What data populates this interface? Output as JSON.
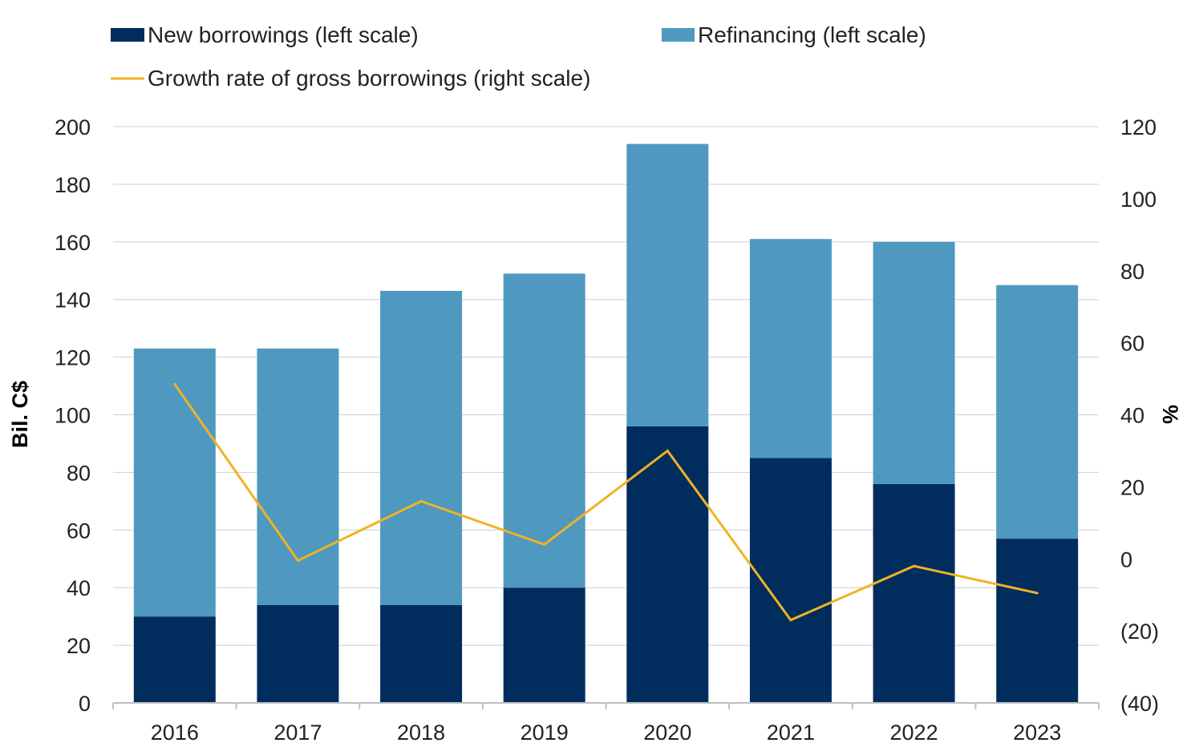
{
  "chart_data": {
    "type": "bar",
    "stacked": true,
    "categories": [
      "2016",
      "2017",
      "2018",
      "2019",
      "2020",
      "2021",
      "2022",
      "2023"
    ],
    "series": [
      {
        "name": "New borrowings (left scale)",
        "type": "bar",
        "axis": "left",
        "color": "#002d5e",
        "values": [
          30,
          34,
          34,
          40,
          96,
          85,
          76,
          57
        ]
      },
      {
        "name": "Refinancing (left scale)",
        "type": "bar",
        "axis": "left",
        "color": "#4f99c0",
        "values": [
          93,
          89,
          109,
          109,
          98,
          76,
          84,
          88
        ]
      },
      {
        "name": "Growth rate of gross borrowings (right scale)",
        "type": "line",
        "axis": "right",
        "color": "#f0b323",
        "values": [
          48.5,
          -0.5,
          16,
          4,
          30,
          -17,
          -2,
          -9.5
        ]
      }
    ],
    "y_left": {
      "label": "Bil. C$",
      "range": [
        0,
        200
      ],
      "ticks": [
        0,
        20,
        40,
        60,
        80,
        100,
        120,
        140,
        160,
        180,
        200
      ],
      "tick_labels": [
        "0",
        "20",
        "40",
        "60",
        "80",
        "100",
        "120",
        "140",
        "160",
        "180",
        "200"
      ]
    },
    "y_right": {
      "label": "%",
      "range": [
        -40,
        120
      ],
      "ticks": [
        -40,
        -20,
        0,
        20,
        40,
        60,
        80,
        100,
        120
      ],
      "tick_labels": [
        "(40)",
        "(20)",
        "0",
        "20",
        "40",
        "60",
        "80",
        "100",
        "120"
      ]
    },
    "grid": true,
    "legend": "top-left"
  }
}
